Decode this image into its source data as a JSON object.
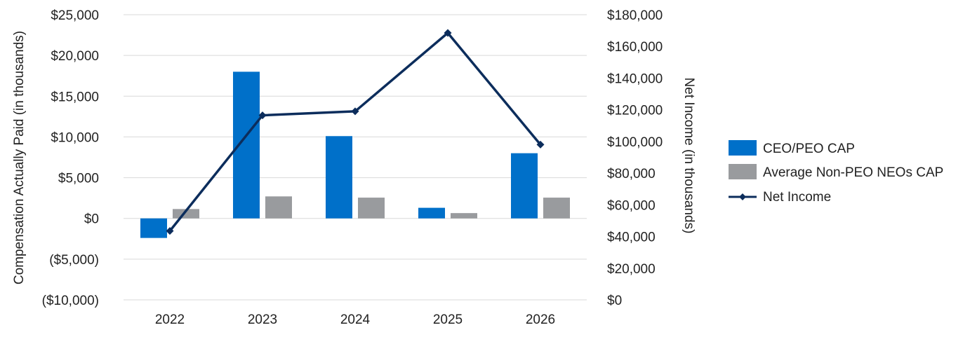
{
  "chart_data": {
    "type": "bar",
    "categories": [
      "2022",
      "2023",
      "2024",
      "2025",
      "2026"
    ],
    "series": [
      {
        "name": "CEO/PEO CAP",
        "type": "bar",
        "axis": "left",
        "color": "#0070c9",
        "values": [
          -2400,
          18000,
          10100,
          1300,
          8000
        ]
      },
      {
        "name": "Average Non-PEO NEOs CAP",
        "type": "bar",
        "axis": "left",
        "color": "#999b9e",
        "values": [
          1150,
          2700,
          2550,
          650,
          2550
        ]
      },
      {
        "name": "Net Income",
        "type": "line",
        "axis": "right",
        "color": "#0c2d5c",
        "marker": "diamond",
        "values": [
          43500,
          116500,
          119000,
          168500,
          98000
        ]
      }
    ],
    "left_axis": {
      "label": "Compensation Actually Paid (in thousands)",
      "ylim": [
        -10000,
        25000
      ],
      "ticks": [
        -10000,
        -5000,
        0,
        5000,
        10000,
        15000,
        20000,
        25000
      ],
      "tick_labels": [
        "($10,000)",
        "($5,000)",
        "$0",
        "$5,000",
        "$10,000",
        "$15,000",
        "$20,000",
        "$25,000"
      ]
    },
    "right_axis": {
      "label": "Net Income (in thousands)",
      "ylim": [
        0,
        180000
      ],
      "ticks": [
        0,
        20000,
        40000,
        60000,
        80000,
        100000,
        120000,
        140000,
        160000,
        180000
      ],
      "tick_labels": [
        "$0",
        "$20,000",
        "$40,000",
        "$60,000",
        "$80,000",
        "$100,000",
        "$120,000",
        "$140,000",
        "$160,000",
        "$180,000"
      ]
    },
    "grid": true,
    "legend_position": "right"
  }
}
